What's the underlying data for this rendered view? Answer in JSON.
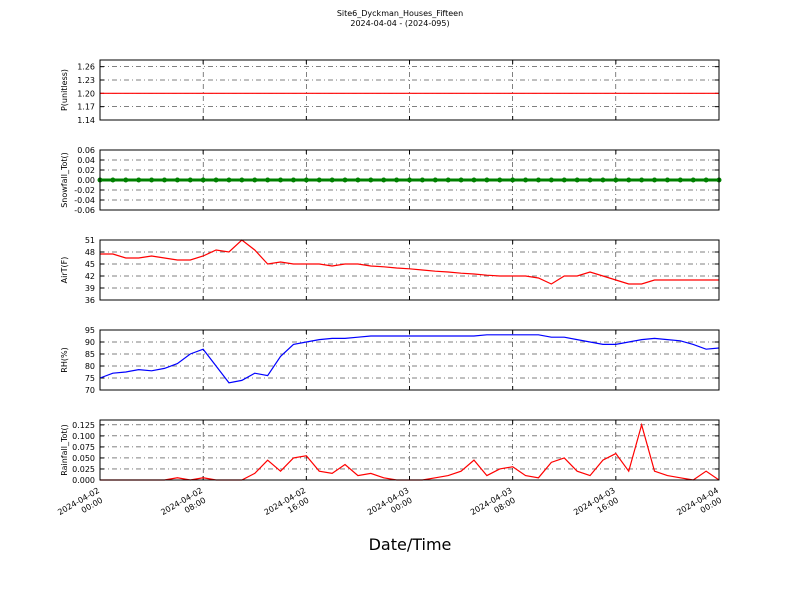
{
  "chart_data": [
    {
      "type": "line",
      "title": "Site6_Dyckman_Houses_Fifteen",
      "subtitle": "2024-04-04 - (2024-095)",
      "ylabel": "P(unitless)",
      "color": "#ff0000",
      "grid": true,
      "x": [
        "2024-04-02 00:00",
        "2024-04-02 01:00",
        "2024-04-02 02:00",
        "2024-04-02 03:00",
        "2024-04-02 04:00",
        "2024-04-02 05:00",
        "2024-04-02 06:00",
        "2024-04-02 07:00",
        "2024-04-02 08:00",
        "2024-04-02 09:00",
        "2024-04-02 10:00",
        "2024-04-02 11:00",
        "2024-04-02 12:00",
        "2024-04-02 13:00",
        "2024-04-02 14:00",
        "2024-04-02 15:00",
        "2024-04-02 16:00",
        "2024-04-02 17:00",
        "2024-04-02 18:00",
        "2024-04-02 19:00",
        "2024-04-02 20:00",
        "2024-04-02 21:00",
        "2024-04-02 22:00",
        "2024-04-02 23:00",
        "2024-04-03 00:00",
        "2024-04-03 01:00",
        "2024-04-03 02:00",
        "2024-04-03 03:00",
        "2024-04-03 04:00",
        "2024-04-03 05:00",
        "2024-04-03 06:00",
        "2024-04-03 07:00",
        "2024-04-03 08:00",
        "2024-04-03 09:00",
        "2024-04-03 10:00",
        "2024-04-03 11:00",
        "2024-04-03 12:00",
        "2024-04-03 13:00",
        "2024-04-03 14:00",
        "2024-04-03 15:00",
        "2024-04-03 16:00",
        "2024-04-03 17:00",
        "2024-04-03 18:00",
        "2024-04-03 19:00",
        "2024-04-03 20:00",
        "2024-04-03 21:00",
        "2024-04-03 22:00",
        "2024-04-03 23:00",
        "2024-04-04 00:00"
      ],
      "values": [
        1.2,
        1.2,
        1.2,
        1.2,
        1.2,
        1.2,
        1.2,
        1.2,
        1.2,
        1.2,
        1.2,
        1.2,
        1.2,
        1.2,
        1.2,
        1.2,
        1.2,
        1.2,
        1.2,
        1.2,
        1.2,
        1.2,
        1.2,
        1.2,
        1.2,
        1.2,
        1.2,
        1.2,
        1.2,
        1.2,
        1.2,
        1.2,
        1.2,
        1.2,
        1.2,
        1.2,
        1.2,
        1.2,
        1.2,
        1.2,
        1.2,
        1.2,
        1.2,
        1.2,
        1.2,
        1.2,
        1.2,
        1.2,
        1.2
      ],
      "xlim": [
        "2024-04-02 00:00",
        "2024-04-04 00:00"
      ],
      "ylim": [
        1.14,
        1.275
      ],
      "yticks": [
        1.14,
        1.17,
        {
          "value": 1.2,
          "label": "1.20"
        },
        1.23,
        1.26
      ]
    },
    {
      "type": "line",
      "ylabel": "Snowfall_Tot()",
      "color": "#008000",
      "markers": true,
      "grid": true,
      "x": [
        "2024-04-02 00:00",
        "2024-04-02 01:00",
        "2024-04-02 02:00",
        "2024-04-02 03:00",
        "2024-04-02 04:00",
        "2024-04-02 05:00",
        "2024-04-02 06:00",
        "2024-04-02 07:00",
        "2024-04-02 08:00",
        "2024-04-02 09:00",
        "2024-04-02 10:00",
        "2024-04-02 11:00",
        "2024-04-02 12:00",
        "2024-04-02 13:00",
        "2024-04-02 14:00",
        "2024-04-02 15:00",
        "2024-04-02 16:00",
        "2024-04-02 17:00",
        "2024-04-02 18:00",
        "2024-04-02 19:00",
        "2024-04-02 20:00",
        "2024-04-02 21:00",
        "2024-04-02 22:00",
        "2024-04-02 23:00",
        "2024-04-03 00:00",
        "2024-04-03 01:00",
        "2024-04-03 02:00",
        "2024-04-03 03:00",
        "2024-04-03 04:00",
        "2024-04-03 05:00",
        "2024-04-03 06:00",
        "2024-04-03 07:00",
        "2024-04-03 08:00",
        "2024-04-03 09:00",
        "2024-04-03 10:00",
        "2024-04-03 11:00",
        "2024-04-03 12:00",
        "2024-04-03 13:00",
        "2024-04-03 14:00",
        "2024-04-03 15:00",
        "2024-04-03 16:00",
        "2024-04-03 17:00",
        "2024-04-03 18:00",
        "2024-04-03 19:00",
        "2024-04-03 20:00",
        "2024-04-03 21:00",
        "2024-04-03 22:00",
        "2024-04-03 23:00",
        "2024-04-04 00:00"
      ],
      "values": [
        0,
        0,
        0,
        0,
        0,
        0,
        0,
        0,
        0,
        0,
        0,
        0,
        0,
        0,
        0,
        0,
        0,
        0,
        0,
        0,
        0,
        0,
        0,
        0,
        0,
        0,
        0,
        0,
        0,
        0,
        0,
        0,
        0,
        0,
        0,
        0,
        0,
        0,
        0,
        0,
        0,
        0,
        0,
        0,
        0,
        0,
        0,
        0,
        0
      ],
      "xlim": [
        "2024-04-02 00:00",
        "2024-04-04 00:00"
      ],
      "ylim": [
        -0.06,
        0.06
      ],
      "yticks": [
        -0.06,
        -0.04,
        -0.02,
        {
          "value": 0,
          "label": "0.00"
        },
        0.02,
        0.04,
        0.06
      ]
    },
    {
      "type": "line",
      "ylabel": "AirT(F)",
      "color": "#ff0000",
      "grid": true,
      "x": [
        "2024-04-02 00:00",
        "2024-04-02 01:00",
        "2024-04-02 02:00",
        "2024-04-02 03:00",
        "2024-04-02 04:00",
        "2024-04-02 05:00",
        "2024-04-02 06:00",
        "2024-04-02 07:00",
        "2024-04-02 08:00",
        "2024-04-02 09:00",
        "2024-04-02 10:00",
        "2024-04-02 11:00",
        "2024-04-02 12:00",
        "2024-04-02 13:00",
        "2024-04-02 14:00",
        "2024-04-02 15:00",
        "2024-04-02 16:00",
        "2024-04-02 17:00",
        "2024-04-02 18:00",
        "2024-04-02 19:00",
        "2024-04-02 20:00",
        "2024-04-02 21:00",
        "2024-04-02 22:00",
        "2024-04-02 23:00",
        "2024-04-03 00:00",
        "2024-04-03 01:00",
        "2024-04-03 02:00",
        "2024-04-03 03:00",
        "2024-04-03 04:00",
        "2024-04-03 05:00",
        "2024-04-03 06:00",
        "2024-04-03 07:00",
        "2024-04-03 08:00",
        "2024-04-03 09:00",
        "2024-04-03 10:00",
        "2024-04-03 11:00",
        "2024-04-03 12:00",
        "2024-04-03 13:00",
        "2024-04-03 14:00",
        "2024-04-03 15:00",
        "2024-04-03 16:00",
        "2024-04-03 17:00",
        "2024-04-03 18:00",
        "2024-04-03 19:00",
        "2024-04-03 20:00",
        "2024-04-03 21:00",
        "2024-04-03 22:00",
        "2024-04-03 23:00",
        "2024-04-04 00:00"
      ],
      "values": [
        47.5,
        47.5,
        46.5,
        46.5,
        47,
        46.5,
        46,
        46,
        47,
        48.5,
        48,
        51,
        48.5,
        45,
        45.5,
        45,
        45,
        45,
        44.5,
        45,
        45,
        44.5,
        44.3,
        44,
        43.8,
        43.5,
        43.2,
        43,
        42.7,
        42.5,
        42.2,
        42,
        42,
        42,
        41.5,
        40,
        42,
        42,
        43,
        42,
        41,
        40,
        40,
        41,
        41,
        41,
        41,
        41,
        41
      ],
      "xlim": [
        "2024-04-02 00:00",
        "2024-04-04 00:00"
      ],
      "ylim": [
        36,
        51
      ],
      "yticks": [
        36,
        39,
        42,
        45,
        48,
        51
      ]
    },
    {
      "type": "line",
      "ylabel": "RH(%)",
      "color": "#0000ff",
      "grid": true,
      "x": [
        "2024-04-02 00:00",
        "2024-04-02 01:00",
        "2024-04-02 02:00",
        "2024-04-02 03:00",
        "2024-04-02 04:00",
        "2024-04-02 05:00",
        "2024-04-02 06:00",
        "2024-04-02 07:00",
        "2024-04-02 08:00",
        "2024-04-02 09:00",
        "2024-04-02 10:00",
        "2024-04-02 11:00",
        "2024-04-02 12:00",
        "2024-04-02 13:00",
        "2024-04-02 14:00",
        "2024-04-02 15:00",
        "2024-04-02 16:00",
        "2024-04-02 17:00",
        "2024-04-02 18:00",
        "2024-04-02 19:00",
        "2024-04-02 20:00",
        "2024-04-02 21:00",
        "2024-04-02 22:00",
        "2024-04-02 23:00",
        "2024-04-03 00:00",
        "2024-04-03 01:00",
        "2024-04-03 02:00",
        "2024-04-03 03:00",
        "2024-04-03 04:00",
        "2024-04-03 05:00",
        "2024-04-03 06:00",
        "2024-04-03 07:00",
        "2024-04-03 08:00",
        "2024-04-03 09:00",
        "2024-04-03 10:00",
        "2024-04-03 11:00",
        "2024-04-03 12:00",
        "2024-04-03 13:00",
        "2024-04-03 14:00",
        "2024-04-03 15:00",
        "2024-04-03 16:00",
        "2024-04-03 17:00",
        "2024-04-03 18:00",
        "2024-04-03 19:00",
        "2024-04-03 20:00",
        "2024-04-03 21:00",
        "2024-04-03 22:00",
        "2024-04-03 23:00",
        "2024-04-04 00:00"
      ],
      "values": [
        75,
        77,
        77.5,
        78.5,
        78,
        79,
        81,
        85,
        87,
        80,
        73,
        74,
        77,
        76,
        84,
        89,
        90,
        91,
        91.5,
        91.5,
        92,
        92.5,
        92.5,
        92.5,
        92.5,
        92.5,
        92.5,
        92.5,
        92.5,
        92.5,
        93,
        93,
        93,
        93,
        93,
        92,
        92,
        91,
        90,
        89,
        89,
        90,
        91,
        91.5,
        91,
        90.5,
        89,
        87,
        87.5
      ],
      "xlim": [
        "2024-04-02 00:00",
        "2024-04-04 00:00"
      ],
      "ylim": [
        70,
        95
      ],
      "yticks": [
        70,
        75,
        80,
        85,
        90,
        95
      ]
    },
    {
      "type": "line",
      "ylabel": "Rainfall_Tot()",
      "xlabel": "Date/Time",
      "color": "#ff0000",
      "grid": true,
      "x": [
        "2024-04-02 00:00",
        "2024-04-02 01:00",
        "2024-04-02 02:00",
        "2024-04-02 03:00",
        "2024-04-02 04:00",
        "2024-04-02 05:00",
        "2024-04-02 06:00",
        "2024-04-02 07:00",
        "2024-04-02 08:00",
        "2024-04-02 09:00",
        "2024-04-02 10:00",
        "2024-04-02 11:00",
        "2024-04-02 12:00",
        "2024-04-02 13:00",
        "2024-04-02 14:00",
        "2024-04-02 15:00",
        "2024-04-02 16:00",
        "2024-04-02 17:00",
        "2024-04-02 18:00",
        "2024-04-02 19:00",
        "2024-04-02 20:00",
        "2024-04-02 21:00",
        "2024-04-02 22:00",
        "2024-04-02 23:00",
        "2024-04-03 00:00",
        "2024-04-03 01:00",
        "2024-04-03 02:00",
        "2024-04-03 03:00",
        "2024-04-03 04:00",
        "2024-04-03 05:00",
        "2024-04-03 06:00",
        "2024-04-03 07:00",
        "2024-04-03 08:00",
        "2024-04-03 09:00",
        "2024-04-03 10:00",
        "2024-04-03 11:00",
        "2024-04-03 12:00",
        "2024-04-03 13:00",
        "2024-04-03 14:00",
        "2024-04-03 15:00",
        "2024-04-03 16:00",
        "2024-04-03 17:00",
        "2024-04-03 18:00",
        "2024-04-03 19:00",
        "2024-04-03 20:00",
        "2024-04-03 21:00",
        "2024-04-03 22:00",
        "2024-04-03 23:00",
        "2024-04-04 00:00"
      ],
      "values": [
        0,
        0,
        0,
        0,
        0,
        0,
        0.005,
        0,
        0.005,
        0,
        0,
        0,
        0.015,
        0.045,
        0.02,
        0.05,
        0.055,
        0.02,
        0.015,
        0.035,
        0.01,
        0.015,
        0.005,
        0,
        0,
        0,
        0.005,
        0.01,
        0.02,
        0.045,
        0.01,
        0.025,
        0.03,
        0.01,
        0.005,
        0.04,
        0.05,
        0.02,
        0.01,
        0.045,
        0.06,
        0.02,
        0.125,
        0.02,
        0.01,
        0.005,
        0,
        0.02,
        0
      ],
      "xlim": [
        "2024-04-02 00:00",
        "2024-04-04 00:00"
      ],
      "ylim": [
        0,
        0.136
      ],
      "yticks": [
        {
          "value": 0,
          "label": "0.000"
        },
        0.025,
        {
          "value": 0.05,
          "label": "0.050"
        },
        0.075,
        {
          "value": 0.1,
          "label": "0.100"
        },
        0.125
      ],
      "xticks": [
        "2024-04-02 00:00",
        "2024-04-02 08:00",
        "2024-04-02 16:00",
        "2024-04-03 00:00",
        "2024-04-03 08:00",
        "2024-04-03 16:00",
        "2024-04-04 00:00"
      ]
    }
  ]
}
